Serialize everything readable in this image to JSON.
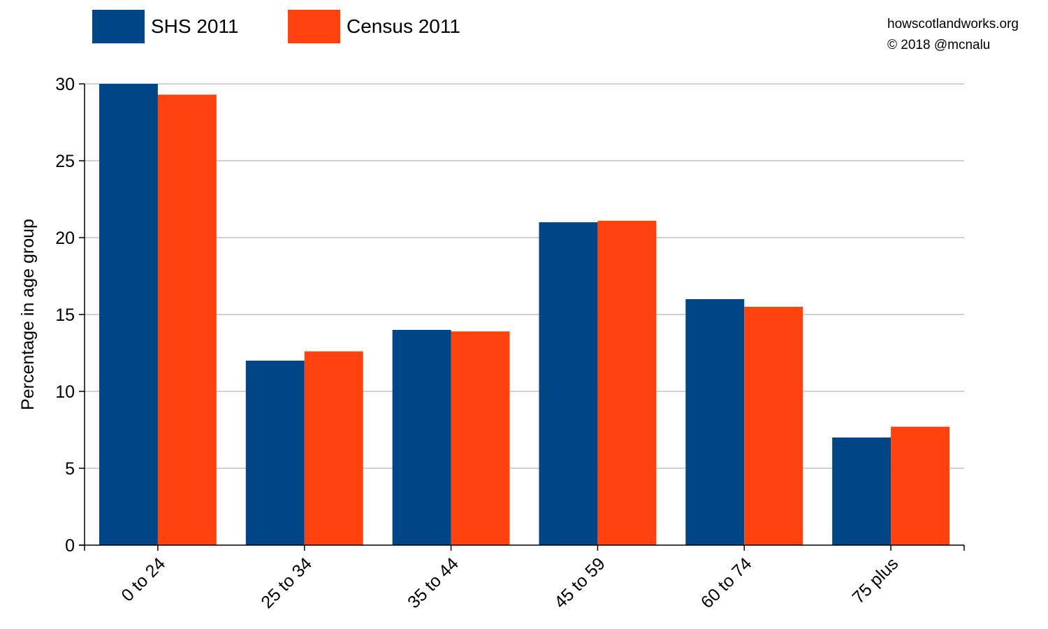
{
  "credits": {
    "site": "howscotlandworks.org",
    "copyright": "© 2018  @mcnalu"
  },
  "chart_data": {
    "type": "bar",
    "title": "",
    "xlabel": "",
    "ylabel": "Percentage in age group",
    "categories": [
      "0 to 24",
      "25 to 34",
      "35 to 44",
      "45 to 59",
      "60 to 74",
      "75 plus"
    ],
    "series": [
      {
        "name": "SHS 2011",
        "color": "#004586",
        "values": [
          30.0,
          12.0,
          14.0,
          21.0,
          16.0,
          7.0
        ]
      },
      {
        "name": "Census 2011",
        "color": "#ff420e",
        "values": [
          29.3,
          12.6,
          13.9,
          21.1,
          15.5,
          7.7
        ]
      }
    ],
    "ylim": [
      0,
      30
    ],
    "yticks": [
      0,
      5,
      10,
      15,
      20,
      25,
      30
    ],
    "grid": true,
    "legend_position": "top-left"
  }
}
